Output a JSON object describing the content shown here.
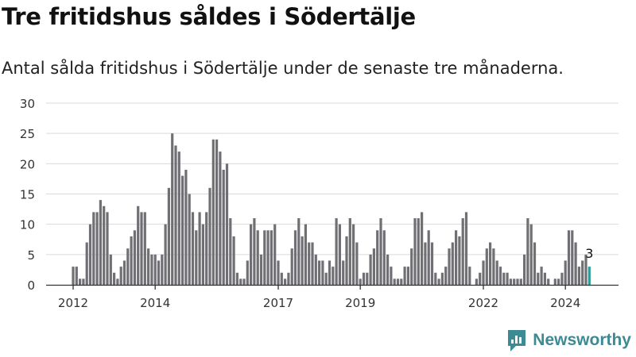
{
  "title": "Tre fritidshus såldes i Södertälje",
  "subtitle": "Antal sålda fritidshus i Södertälje under de senaste tre månaderna.",
  "brand": "Newsworthy",
  "colors": {
    "bar": "#707074",
    "highlight": "#2e9c97",
    "grid": "#d9d9d9",
    "axis": "#333333",
    "brand": "#3d8a94"
  },
  "chart_data": {
    "type": "bar",
    "title": "Tre fritidshus såldes i Södertälje",
    "subtitle": "Antal sålda fritidshus i Södertälje under de senaste tre månaderna.",
    "xlabel": "",
    "ylabel": "",
    "ylim": [
      0,
      30
    ],
    "yticks": [
      0,
      5,
      10,
      15,
      20,
      25,
      30
    ],
    "grid": true,
    "x_tick_labels": [
      {
        "label": "2012",
        "index": 0
      },
      {
        "label": "2014",
        "index": 24
      },
      {
        "label": "2017",
        "index": 60
      },
      {
        "label": "2019",
        "index": 84
      },
      {
        "label": "2022",
        "index": 120
      },
      {
        "label": "2024",
        "index": 144
      }
    ],
    "values": [
      3,
      3,
      1,
      1,
      7,
      10,
      12,
      12,
      14,
      13,
      12,
      5,
      2,
      1,
      3,
      4,
      6,
      8,
      9,
      13,
      12,
      12,
      6,
      5,
      5,
      4,
      5,
      10,
      16,
      25,
      23,
      22,
      18,
      19,
      15,
      12,
      9,
      12,
      10,
      12,
      16,
      24,
      24,
      22,
      19,
      20,
      11,
      8,
      2,
      1,
      1,
      4,
      10,
      11,
      9,
      5,
      9,
      9,
      9,
      10,
      4,
      2,
      1,
      2,
      6,
      9,
      11,
      8,
      10,
      7,
      7,
      5,
      4,
      4,
      2,
      4,
      3,
      11,
      10,
      4,
      8,
      11,
      10,
      7,
      1,
      2,
      2,
      5,
      6,
      9,
      11,
      9,
      5,
      3,
      1,
      1,
      1,
      3,
      3,
      6,
      11,
      11,
      12,
      7,
      9,
      7,
      2,
      1,
      2,
      3,
      6,
      7,
      9,
      8,
      11,
      12,
      3,
      0,
      1,
      2,
      4,
      6,
      7,
      6,
      4,
      3,
      2,
      2,
      1,
      1,
      1,
      1,
      5,
      11,
      10,
      7,
      2,
      3,
      2,
      1,
      0,
      1,
      1,
      2,
      4,
      9,
      9,
      7,
      3,
      4,
      5,
      3
    ],
    "highlight_index": 151,
    "annotation": {
      "text": "3",
      "index": 151
    }
  }
}
